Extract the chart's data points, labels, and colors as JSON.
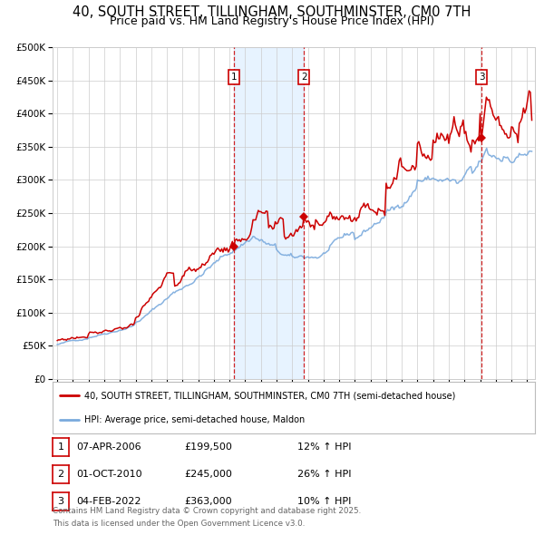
{
  "title": "40, SOUTH STREET, TILLINGHAM, SOUTHMINSTER, CM0 7TH",
  "subtitle": "Price paid vs. HM Land Registry's House Price Index (HPI)",
  "legend_line1": "40, SOUTH STREET, TILLINGHAM, SOUTHMINSTER, CM0 7TH (semi-detached house)",
  "legend_line2": "HPI: Average price, semi-detached house, Maldon",
  "footer": "Contains HM Land Registry data © Crown copyright and database right 2025.\nThis data is licensed under the Open Government Licence v3.0.",
  "sales": [
    {
      "num": 1,
      "date": "07-APR-2006",
      "price": 199500,
      "hpi_pct": "12%",
      "direction": "↑"
    },
    {
      "num": 2,
      "date": "01-OCT-2010",
      "price": 245000,
      "hpi_pct": "26%",
      "direction": "↑"
    },
    {
      "num": 3,
      "date": "04-FEB-2022",
      "price": 363000,
      "hpi_pct": "10%",
      "direction": "↑"
    }
  ],
  "sale_dates_decimal": [
    2006.27,
    2010.75,
    2022.09
  ],
  "sale_prices": [
    199500,
    245000,
    363000
  ],
  "ylim": [
    0,
    500000
  ],
  "yticks": [
    0,
    50000,
    100000,
    150000,
    200000,
    250000,
    300000,
    350000,
    400000,
    450000,
    500000
  ],
  "xlim_start": 1994.7,
  "xlim_end": 2025.5,
  "plot_bg": "#ffffff",
  "grid_color": "#cccccc",
  "hpi_line_color": "#7aaadd",
  "price_line_color": "#cc0000",
  "sale_marker_color": "#cc0000",
  "vline_color": "#cc0000",
  "shade_color": "#ddeeff",
  "title_fontsize": 10.5,
  "subtitle_fontsize": 9
}
